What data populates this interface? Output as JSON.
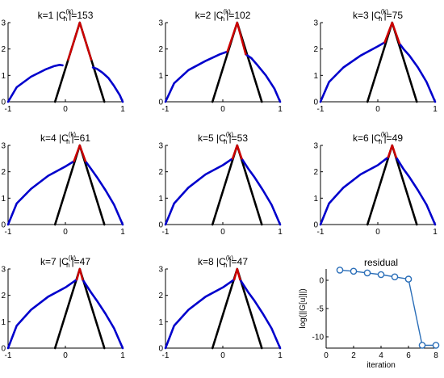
{
  "chart_data": [
    {
      "type": "line",
      "k_label": "k=1",
      "c_label": "|C",
      "c_sub": "h",
      "c_sup": "(k)",
      "c_value": "|=153",
      "xlim": [
        -1,
        1
      ],
      "ylim": [
        0,
        3
      ],
      "xticks": [
        -1,
        0,
        1
      ],
      "yticks": [
        0,
        1,
        2,
        3
      ],
      "series": [
        {
          "color": "#000000",
          "x": [
            -0.18,
            0.25,
            0.68
          ],
          "y": [
            0,
            3,
            0
          ]
        },
        {
          "color": "#0000cc",
          "x": [
            -1,
            -0.85,
            -0.6,
            -0.35,
            -0.2,
            -0.1,
            -0.05
          ],
          "y": [
            0,
            0.55,
            0.95,
            1.22,
            1.35,
            1.4,
            1.38
          ]
        },
        {
          "color": "#0000cc",
          "x": [
            0.48,
            0.55,
            0.65,
            0.75,
            0.85,
            0.95,
            1
          ],
          "y": [
            1.3,
            1.25,
            1.1,
            0.9,
            0.6,
            0.25,
            0
          ]
        },
        {
          "color": "#cc0000",
          "x": [
            0.05,
            0.25,
            0.45
          ],
          "y": [
            1.6,
            3,
            1.6
          ]
        }
      ]
    },
    {
      "type": "line",
      "k_label": "k=2",
      "c_label": "|C",
      "c_sub": "h",
      "c_sup": "(k)",
      "c_value": "|=102",
      "xlim": [
        -1,
        1
      ],
      "ylim": [
        0,
        3
      ],
      "xticks": [
        -1,
        0,
        1
      ],
      "yticks": [
        0,
        1,
        2,
        3
      ],
      "series": [
        {
          "color": "#000000",
          "x": [
            -0.18,
            0.25,
            0.68
          ],
          "y": [
            0,
            3,
            0
          ]
        },
        {
          "color": "#0000cc",
          "x": [
            -1,
            -0.85,
            -0.6,
            -0.3,
            -0.05,
            0.08
          ],
          "y": [
            0,
            0.7,
            1.2,
            1.55,
            1.8,
            1.9
          ]
        },
        {
          "color": "#0000cc",
          "x": [
            0.4,
            0.5,
            0.6,
            0.75,
            0.9,
            1
          ],
          "y": [
            1.8,
            1.65,
            1.4,
            1.0,
            0.5,
            0
          ]
        },
        {
          "color": "#cc0000",
          "x": [
            0.08,
            0.25,
            0.4
          ],
          "y": [
            1.9,
            3,
            1.8
          ]
        }
      ]
    },
    {
      "type": "line",
      "k_label": "k=3",
      "c_label": "|C",
      "c_sub": "h",
      "c_sup": "(k)",
      "c_value": "|=75",
      "xlim": [
        -1,
        1
      ],
      "ylim": [
        0,
        3
      ],
      "xticks": [
        -1,
        0,
        1
      ],
      "yticks": [
        0,
        1,
        2,
        3
      ],
      "series": [
        {
          "color": "#000000",
          "x": [
            -0.18,
            0.25,
            0.68
          ],
          "y": [
            0,
            3,
            0
          ]
        },
        {
          "color": "#0000cc",
          "x": [
            -1,
            -0.85,
            -0.6,
            -0.3,
            0,
            0.12
          ],
          "y": [
            0,
            0.75,
            1.3,
            1.75,
            2.1,
            2.25
          ]
        },
        {
          "color": "#0000cc",
          "x": [
            0.38,
            0.45,
            0.55,
            0.7,
            0.85,
            1
          ],
          "y": [
            2.2,
            2.0,
            1.75,
            1.3,
            0.75,
            0
          ]
        },
        {
          "color": "#cc0000",
          "x": [
            0.12,
            0.25,
            0.38
          ],
          "y": [
            2.25,
            3,
            2.2
          ]
        }
      ]
    },
    {
      "type": "line",
      "k_label": "k=4",
      "c_label": "|C",
      "c_sub": "h",
      "c_sup": "(k)",
      "c_value": "|=61",
      "xlim": [
        -1,
        1
      ],
      "ylim": [
        0,
        3
      ],
      "xticks": [
        -1,
        0,
        1
      ],
      "yticks": [
        0,
        1,
        2,
        3
      ],
      "series": [
        {
          "color": "#000000",
          "x": [
            -0.18,
            0.25,
            0.68
          ],
          "y": [
            0,
            3,
            0
          ]
        },
        {
          "color": "#0000cc",
          "x": [
            -1,
            -0.85,
            -0.6,
            -0.3,
            0,
            0.15
          ],
          "y": [
            0,
            0.8,
            1.35,
            1.85,
            2.2,
            2.4
          ]
        },
        {
          "color": "#0000cc",
          "x": [
            0.35,
            0.45,
            0.55,
            0.7,
            0.85,
            1
          ],
          "y": [
            2.4,
            2.1,
            1.8,
            1.3,
            0.75,
            0
          ]
        },
        {
          "color": "#cc0000",
          "x": [
            0.15,
            0.25,
            0.35
          ],
          "y": [
            2.4,
            3,
            2.4
          ]
        }
      ]
    },
    {
      "type": "line",
      "k_label": "k=5",
      "c_label": "|C",
      "c_sub": "h",
      "c_sup": "(k)",
      "c_value": "|=53",
      "xlim": [
        -1,
        1
      ],
      "ylim": [
        0,
        3
      ],
      "xticks": [
        -1,
        0,
        1
      ],
      "yticks": [
        0,
        1,
        2,
        3
      ],
      "series": [
        {
          "color": "#000000",
          "x": [
            -0.18,
            0.25,
            0.68
          ],
          "y": [
            0,
            3,
            0
          ]
        },
        {
          "color": "#0000cc",
          "x": [
            -1,
            -0.85,
            -0.6,
            -0.3,
            0,
            0.17
          ],
          "y": [
            0,
            0.8,
            1.4,
            1.9,
            2.25,
            2.5
          ]
        },
        {
          "color": "#0000cc",
          "x": [
            0.33,
            0.45,
            0.55,
            0.7,
            0.85,
            1
          ],
          "y": [
            2.5,
            2.1,
            1.8,
            1.3,
            0.75,
            0
          ]
        },
        {
          "color": "#cc0000",
          "x": [
            0.17,
            0.25,
            0.33
          ],
          "y": [
            2.5,
            3,
            2.5
          ]
        }
      ]
    },
    {
      "type": "line",
      "k_label": "k=6",
      "c_label": "|C",
      "c_sub": "h",
      "c_sup": "(k)",
      "c_value": "|=49",
      "xlim": [
        -1,
        1
      ],
      "ylim": [
        0,
        3
      ],
      "xticks": [
        -1,
        0,
        1
      ],
      "yticks": [
        0,
        1,
        2,
        3
      ],
      "series": [
        {
          "color": "#000000",
          "x": [
            -0.18,
            0.25,
            0.68
          ],
          "y": [
            0,
            3,
            0
          ]
        },
        {
          "color": "#0000cc",
          "x": [
            -1,
            -0.85,
            -0.6,
            -0.3,
            0,
            0.18
          ],
          "y": [
            0,
            0.8,
            1.4,
            1.9,
            2.25,
            2.55
          ]
        },
        {
          "color": "#0000cc",
          "x": [
            0.32,
            0.45,
            0.55,
            0.7,
            0.85,
            1
          ],
          "y": [
            2.55,
            2.1,
            1.8,
            1.3,
            0.75,
            0
          ]
        },
        {
          "color": "#cc0000",
          "x": [
            0.18,
            0.25,
            0.32
          ],
          "y": [
            2.55,
            3,
            2.55
          ]
        }
      ]
    },
    {
      "type": "line",
      "k_label": "k=7",
      "c_label": "|C",
      "c_sub": "h",
      "c_sup": "(k)",
      "c_value": "|=47",
      "xlim": [
        -1,
        1
      ],
      "ylim": [
        0,
        3
      ],
      "xticks": [
        -1,
        0,
        1
      ],
      "yticks": [
        0,
        1,
        2,
        3
      ],
      "series": [
        {
          "color": "#000000",
          "x": [
            -0.18,
            0.25,
            0.68
          ],
          "y": [
            0,
            3,
            0
          ]
        },
        {
          "color": "#0000cc",
          "x": [
            -1,
            -0.85,
            -0.6,
            -0.3,
            0,
            0.2
          ],
          "y": [
            0,
            0.85,
            1.45,
            1.95,
            2.3,
            2.6
          ]
        },
        {
          "color": "#0000cc",
          "x": [
            0.3,
            0.45,
            0.55,
            0.7,
            0.85,
            1
          ],
          "y": [
            2.6,
            2.1,
            1.8,
            1.3,
            0.75,
            0
          ]
        },
        {
          "color": "#cc0000",
          "x": [
            0.2,
            0.25,
            0.3
          ],
          "y": [
            2.6,
            3,
            2.6
          ]
        }
      ]
    },
    {
      "type": "line",
      "k_label": "k=8",
      "c_label": "|C",
      "c_sub": "h",
      "c_sup": "(k)",
      "c_value": "|=47",
      "xlim": [
        -1,
        1
      ],
      "ylim": [
        0,
        3
      ],
      "xticks": [
        -1,
        0,
        1
      ],
      "yticks": [
        0,
        1,
        2,
        3
      ],
      "series": [
        {
          "color": "#000000",
          "x": [
            -0.18,
            0.25,
            0.68
          ],
          "y": [
            0,
            3,
            0
          ]
        },
        {
          "color": "#0000cc",
          "x": [
            -1,
            -0.85,
            -0.6,
            -0.3,
            0,
            0.2
          ],
          "y": [
            0,
            0.85,
            1.45,
            1.95,
            2.3,
            2.6
          ]
        },
        {
          "color": "#0000cc",
          "x": [
            0.3,
            0.45,
            0.55,
            0.7,
            0.85,
            1
          ],
          "y": [
            2.6,
            2.1,
            1.8,
            1.3,
            0.75,
            0
          ]
        },
        {
          "color": "#cc0000",
          "x": [
            0.2,
            0.25,
            0.3
          ],
          "y": [
            2.6,
            3,
            2.6
          ]
        }
      ]
    },
    {
      "type": "line",
      "title": "residual",
      "xlabel": "iteration",
      "ylabel": "log(||G[u]||)",
      "xlim": [
        0,
        8
      ],
      "ylim": [
        -12,
        2
      ],
      "xticks": [
        0,
        2,
        4,
        6,
        8
      ],
      "yticks": [
        -10,
        -5,
        0
      ],
      "series": [
        {
          "color": "#2a6eb8",
          "marker": "circle",
          "x": [
            1,
            2,
            3,
            4,
            5,
            6,
            7,
            8
          ],
          "y": [
            1.8,
            1.6,
            1.3,
            1.0,
            0.6,
            0.2,
            -11.5,
            -11.5
          ]
        }
      ]
    }
  ]
}
